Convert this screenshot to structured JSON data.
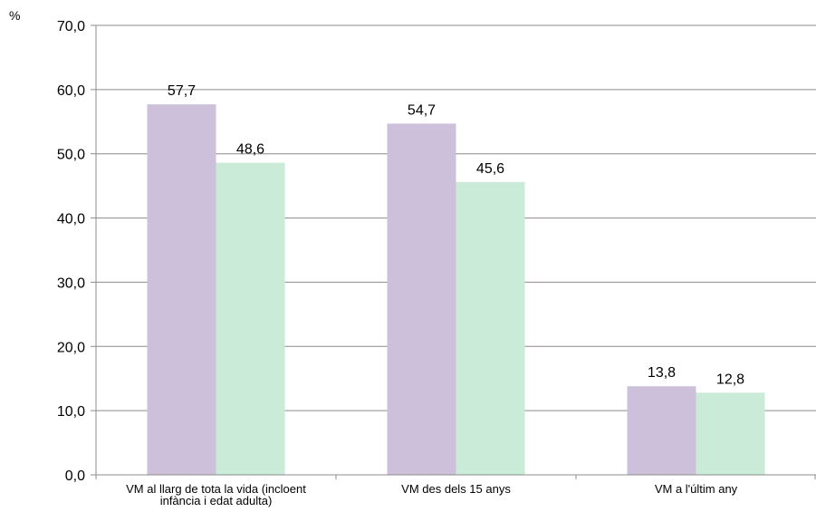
{
  "chart_data": {
    "type": "bar",
    "unit_label": "%",
    "categories": [
      [
        "VM al llarg de tota la vida (incloent",
        "infància i edat adulta)"
      ],
      [
        "VM des dels 15 anys"
      ],
      [
        "VM a l'últim any"
      ]
    ],
    "series": [
      {
        "color": "#ccc0da",
        "values": [
          57.7,
          54.7,
          13.8
        ],
        "labels": [
          "57,7",
          "54,7",
          "13,8"
        ]
      },
      {
        "color": "#c9ebd7",
        "values": [
          48.6,
          45.6,
          12.8
        ],
        "labels": [
          "48,6",
          "45,6",
          "12,8"
        ]
      }
    ],
    "ylim": [
      0,
      70
    ],
    "yticks": [
      0,
      10,
      20,
      30,
      40,
      50,
      60,
      70
    ],
    "ytick_labels": [
      "0,0",
      "10,0",
      "20,0",
      "30,0",
      "40,0",
      "50,0",
      "60,0",
      "70,0"
    ],
    "grid": true,
    "legend": false
  }
}
